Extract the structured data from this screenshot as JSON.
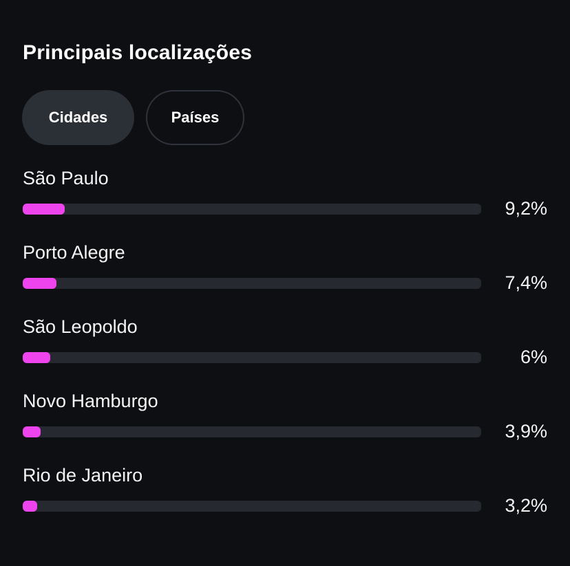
{
  "header": {
    "title": "Principais localizações"
  },
  "tabs": [
    {
      "label": "Cidades",
      "active": true
    },
    {
      "label": "Países",
      "active": false
    }
  ],
  "locations": [
    {
      "name": "São Paulo",
      "percent_label": "9,2%",
      "fraction": 0.092
    },
    {
      "name": "Porto Alegre",
      "percent_label": "7,4%",
      "fraction": 0.074
    },
    {
      "name": "São Leopoldo",
      "percent_label": "6%",
      "fraction": 0.06
    },
    {
      "name": "Novo Hamburgo",
      "percent_label": "3,9%",
      "fraction": 0.039
    },
    {
      "name": "Rio de Janeiro",
      "percent_label": "3,2%",
      "fraction": 0.032
    }
  ],
  "colors": {
    "background": "#0d0f13",
    "bar_fill": "#ee44ee",
    "bar_track": "#26292f",
    "tab_active": "#2b2f36"
  }
}
